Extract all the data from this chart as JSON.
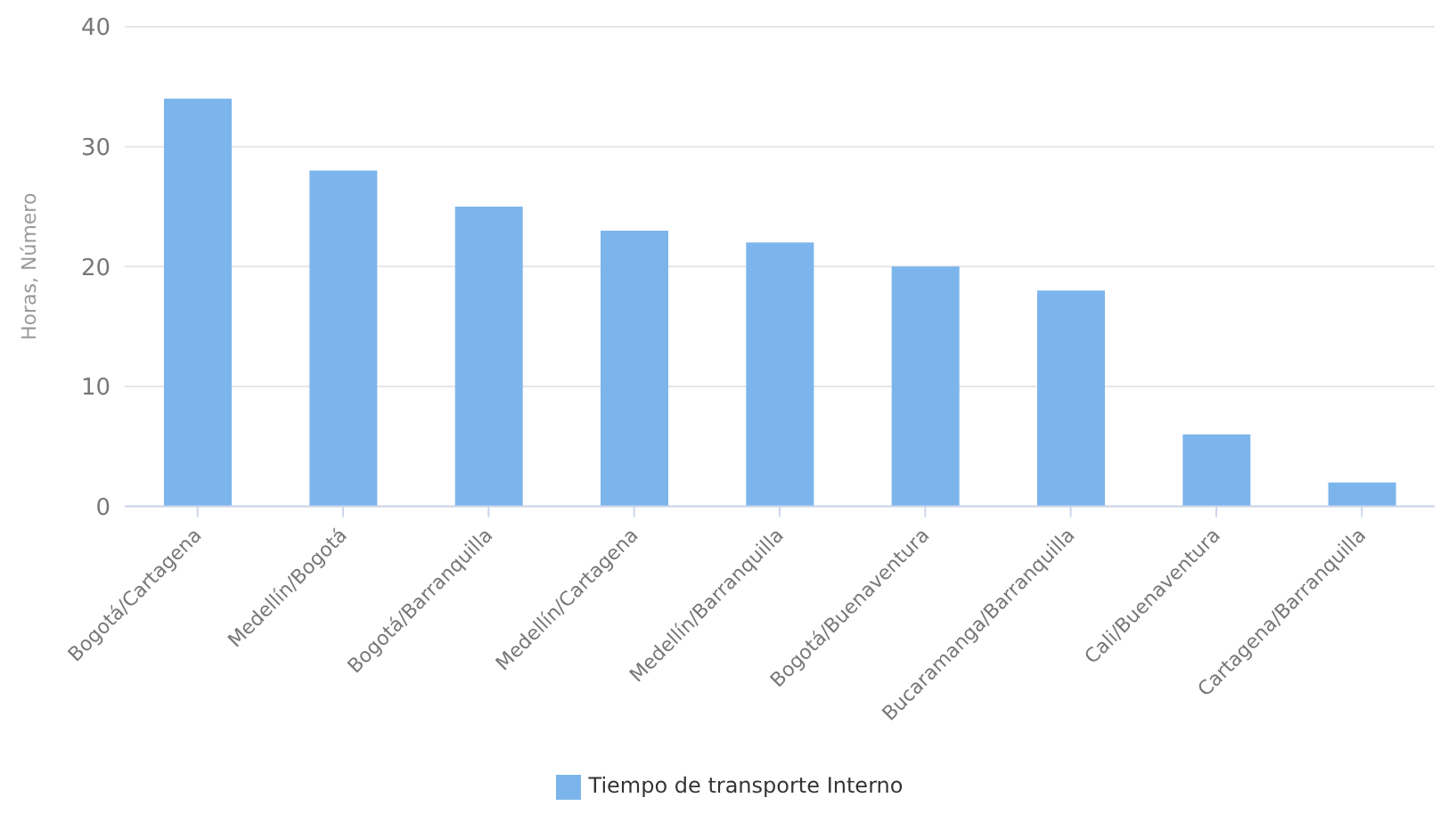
{
  "chart_data": {
    "type": "bar",
    "ylabel": "Horas, Número",
    "categories": [
      "Bogotá/Cartagena",
      "Medellín/Bogotá",
      "Bogotá/Barranquilla",
      "Medellín/Cartagena",
      "Medellín/Barranquilla",
      "Bogotá/Buenaventura",
      "Bucaramanga/Barranquilla",
      "Cali/Buenaventura",
      "Cartagena/Barranquilla"
    ],
    "series": [
      {
        "name": "Tiempo de transporte Interno",
        "color": "#7cb5ec",
        "values": [
          34,
          28,
          25,
          23,
          22,
          20,
          18,
          6,
          2
        ]
      }
    ],
    "ylim": [
      0,
      40
    ],
    "yticks": [
      0,
      10,
      20,
      30,
      40
    ],
    "grid": "y",
    "legend": "bottom"
  }
}
